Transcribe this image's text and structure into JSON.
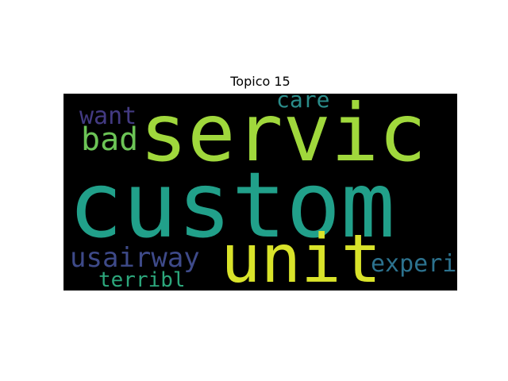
{
  "title": "Topico 15",
  "words": [
    {
      "text": "custom",
      "color": "#21a08a"
    },
    {
      "text": "servic",
      "color": "#a0d83c"
    },
    {
      "text": "unit",
      "color": "#d9e32a"
    },
    {
      "text": "usairway",
      "color": "#3e4a89"
    },
    {
      "text": "bad",
      "color": "#6cc456"
    },
    {
      "text": "want",
      "color": "#433a82"
    },
    {
      "text": "care",
      "color": "#2a8c8a"
    },
    {
      "text": "experi",
      "color": "#2c728e"
    },
    {
      "text": "terribl",
      "color": "#2ca77c"
    }
  ]
}
